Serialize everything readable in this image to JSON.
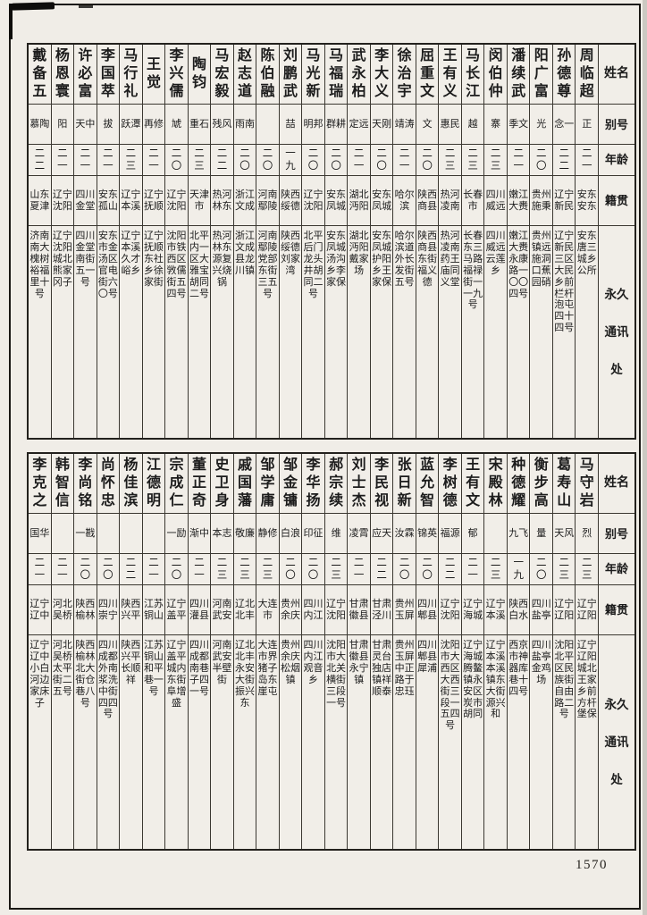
{
  "page": {
    "number": "1570",
    "colors": {
      "paper": "#f0ede7",
      "ink": "#1c1c1c",
      "line": "#3b3831"
    },
    "headers": {
      "name": "姓名",
      "alias": "别号",
      "age": "年龄",
      "native": "籍贯",
      "address": "永久通讯处"
    }
  },
  "tables": [
    {
      "entries": [
        {
          "name": "周临超",
          "alias": "正",
          "age": "二一",
          "native": "安东安东",
          "address": "安东唐三城乡公所"
        },
        {
          "name": "孙德尊",
          "alias": "念一",
          "age": "二二",
          "native": "辽宁新民",
          "address": "辽宁新民三区大民乡前栏杆泡屯四十四号"
        },
        {
          "name": "阳广富",
          "alias": "光",
          "age": "二〇",
          "native": "贵州施秉",
          "address": "贵州镇远施洞口蕉园硝"
        },
        {
          "name": "潘续武",
          "alias": "季文",
          "age": "二一",
          "native": "嫩江大赉",
          "address": "嫩江大赉永康路一〇〇四号"
        },
        {
          "name": "闵伯仲",
          "alias": "寨",
          "age": "二三",
          "native": "四川威远",
          "address": "四川威远云莲乡"
        },
        {
          "name": "马长江",
          "alias": "越",
          "age": "二三",
          "native": "长春市",
          "address": "长春东三马路福禄街一一九号"
        },
        {
          "name": "王有义",
          "alias": "惠民",
          "age": "二三",
          "native": "热河凌南",
          "address": "热河凌南药王庙同义堂"
        },
        {
          "name": "屈重文",
          "alias": "文",
          "age": "二〇",
          "native": "陕西商县",
          "address": "陕西商县东街福义德"
        },
        {
          "name": "徐治宇",
          "alias": "靖涛",
          "age": "二一",
          "native": "哈尔滨",
          "address": "哈尔滨道外长发街五号"
        },
        {
          "name": "李大义",
          "alias": "天刚",
          "age": "二〇",
          "native": "安东凤城",
          "address": "安东凤城护阳乡王家保"
        },
        {
          "name": "武永柏",
          "alias": "定远",
          "age": "二一",
          "native": "湖北沔阳",
          "address": "湖北沔阳戴家场"
        },
        {
          "name": "马福瑞",
          "alias": "群耕",
          "age": "二〇",
          "native": "安东凤城",
          "address": "安东凤城汤沟乡李家保"
        },
        {
          "name": "马光新",
          "alias": "明邦",
          "age": "二〇",
          "native": "辽宁沈阳",
          "address": "北平后门龙头井胡同二号"
        },
        {
          "name": "刘鹏武",
          "alias": "喆",
          "age": "一九",
          "native": "陕西绥德",
          "address": "陕西绥德刘家湾"
        },
        {
          "name": "陈伯融",
          "alias": "",
          "age": "二〇",
          "native": "河南鄢陵",
          "address": "河南鄢陵党部东街三五号"
        },
        {
          "name": "赵志道",
          "alias": "雨南",
          "age": "二〇",
          "native": "浙江文成",
          "address": "浙江文成县龙川镇"
        },
        {
          "name": "马宏毅",
          "alias": "残风",
          "age": "二二",
          "native": "热河林东",
          "address": "热河林东源复兴烧锅"
        },
        {
          "name": "陶钧",
          "alias": "重石",
          "age": "二三",
          "native": "天津市",
          "address": "北平内一区大雅宝胡同二号"
        },
        {
          "name": "李兴儒",
          "alias": "虓",
          "age": "二〇",
          "native": "辽宁沈阳",
          "address": "沈阳市铁西区敩儒街五四号"
        },
        {
          "name": "王觉",
          "alias": "再修",
          "age": "二一",
          "native": "辽宁抚顺",
          "address": "辽宁抚顺东社乡徐家街"
        },
        {
          "name": "马行礼",
          "alias": "跃潭",
          "age": "二三",
          "native": "辽宁本溪",
          "address": "辽宁本溪久才峪乡"
        },
        {
          "name": "李国萃",
          "alias": "拔",
          "age": "二一",
          "native": "安东孤山",
          "address": "安东市金汤区官电街六〇号"
        },
        {
          "name": "许必富",
          "alias": "天中",
          "age": "二一",
          "native": "四川金堂",
          "address": "四川金堂南街五一号"
        },
        {
          "name": "杨恩寰",
          "alias": "阳",
          "age": "二一",
          "native": "辽宁沈阳",
          "address": "辽宁沈阳城北熊家冈子"
        },
        {
          "name": "戴备五",
          "alias": "慕陶",
          "age": "二二",
          "native": "山东夏津",
          "address": "济南南大槐树裕福里十号"
        }
      ]
    },
    {
      "entries": [
        {
          "name": "马守岩",
          "alias": "烈",
          "age": "二三",
          "native": "辽宁辽阳",
          "address": "辽宁辽阳城北王家乡前方杆堡保"
        },
        {
          "name": "葛寿山",
          "alias": "天风",
          "age": "二三",
          "native": "辽宁辽阳",
          "address": "沈阳北平区民族街自由路二号"
        },
        {
          "name": "衡步高",
          "alias": "量",
          "age": "二〇",
          "native": "四川盐亭",
          "address": "四川盐亭金鸡场"
        },
        {
          "name": "种德耀",
          "alias": "九飞",
          "age": "一九",
          "native": "陕西白水",
          "address": "西京市神器库巷十四号"
        },
        {
          "name": "宋殿林",
          "alias": "",
          "age": "二三",
          "native": "辽宁本溪",
          "address": "辽宁本溪本溪镇东大街源兴和"
        },
        {
          "name": "王有文",
          "alias": "郁",
          "age": "二一",
          "native": "辽宁海城",
          "address": "辽宁海城腾鳌镇永安区炭市胡同"
        },
        {
          "name": "李树德",
          "alias": "福源",
          "age": "二二",
          "native": "辽宁沈阳",
          "address": "沈阳市大西区大西街三段一五四号"
        },
        {
          "name": "蓝允智",
          "alias": "锦英",
          "age": "二〇",
          "native": "四川郫县",
          "address": "四川郫县犀浦"
        },
        {
          "name": "张日新",
          "alias": "汝霖",
          "age": "二〇",
          "native": "贵州玉屏",
          "address": "贵州玉屏中正路于忠珏"
        },
        {
          "name": "李民视",
          "alias": "应天",
          "age": "二二",
          "native": "甘肃泾川",
          "address": "甘肃灵台独店镇祥顺泰"
        },
        {
          "name": "刘士杰",
          "alias": "凌霄",
          "age": "二一",
          "native": "甘肃徽县",
          "address": "甘肃徽县永宁镇"
        },
        {
          "name": "郝宗续",
          "alias": "维",
          "age": "二三",
          "native": "辽宁沈阳",
          "address": "沈阳市大北关横街三段一号"
        },
        {
          "name": "李华扬",
          "alias": "印征",
          "age": "二〇",
          "native": "四川内江",
          "address": "四川内江观音乡"
        },
        {
          "name": "邹金镛",
          "alias": "白浪",
          "age": "二〇",
          "native": "贵州余庆",
          "address": "贵州余庆松烟镇"
        },
        {
          "name": "邹学庸",
          "alias": "静修",
          "age": "二三",
          "native": "大连市",
          "address": "大连市界猪子岛东崖屯"
        },
        {
          "name": "戚国藩",
          "alias": "敬廉",
          "age": "二三",
          "native": "辽北北丰",
          "address": "辽北北丰永安大街振兴东"
        },
        {
          "name": "史卫身",
          "alias": "本志",
          "age": "二三",
          "native": "河南武安",
          "address": "河南武安半壁街"
        },
        {
          "name": "董正奇",
          "alias": "渐中",
          "age": "二一",
          "native": "四川灌县",
          "address": "四川成都南巷子四一号"
        },
        {
          "name": "宗成仁",
          "alias": "一励",
          "age": "二〇",
          "native": "辽宁盖平",
          "address": "辽宁盖平城内东街阜增盛"
        },
        {
          "name": "江德明",
          "alias": "",
          "age": "二一",
          "native": "江苏铜山",
          "address": "江苏铜山和平巷一号"
        },
        {
          "name": "杨佳滨",
          "alias": "",
          "age": "二二",
          "native": "陕西兴平",
          "address": "陕西兴平长顺祥"
        },
        {
          "name": "尚怀忠",
          "alias": "",
          "age": "二〇",
          "native": "四川崇宁",
          "address": "四川成都外南浆洗中街四四号"
        },
        {
          "name": "李尚铭",
          "alias": "一戡",
          "age": "二〇",
          "native": "陕西榆林",
          "address": "陕西榆林北大街仓巷八号"
        },
        {
          "name": "韩智信",
          "alias": "",
          "age": "二一",
          "native": "河北吴桥",
          "address": "河北吴桥太平街二五号"
        },
        {
          "name": "李克之",
          "alias": "国华",
          "age": "二一",
          "native": "辽宁辽中",
          "address": "辽宁辽中小白河边家床子"
        }
      ]
    }
  ]
}
